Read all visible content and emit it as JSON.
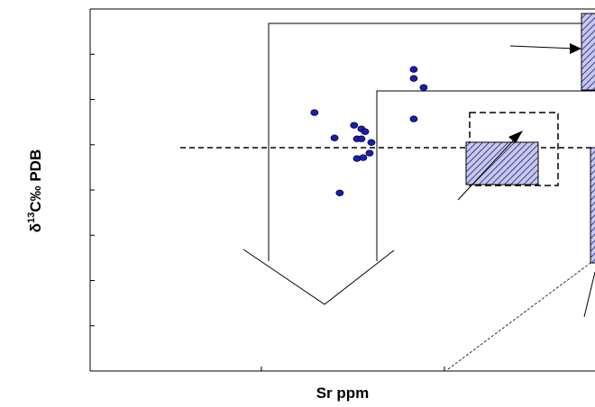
{
  "chart_data": {
    "type": "scatter",
    "x_label": "Sr ppm",
    "y_label": [
      "δ",
      "13",
      "C‰ PDB"
    ],
    "x_scale": "log",
    "xlim": [
      11.6,
      6650
    ],
    "xticks": [
      100,
      1000
    ],
    "ylim": [
      -8,
      8
    ],
    "yticks": [
      -8,
      -6,
      -4,
      -2,
      0,
      2,
      4,
      6,
      8
    ],
    "series": [
      {
        "color": "#1c1cb4",
        "x": [
          195,
          251,
          321,
          352,
          369,
          333,
          352,
          399,
          333,
          360,
          390,
          268,
          680,
          680,
          770,
          680
        ],
        "values": [
          3.42,
          2.3,
          2.86,
          2.7,
          2.58,
          2.26,
          2.26,
          2.1,
          1.39,
          1.43,
          1.63,
          -0.13,
          5.33,
          4.93,
          4.53,
          3.14
        ]
      }
    ]
  }
}
